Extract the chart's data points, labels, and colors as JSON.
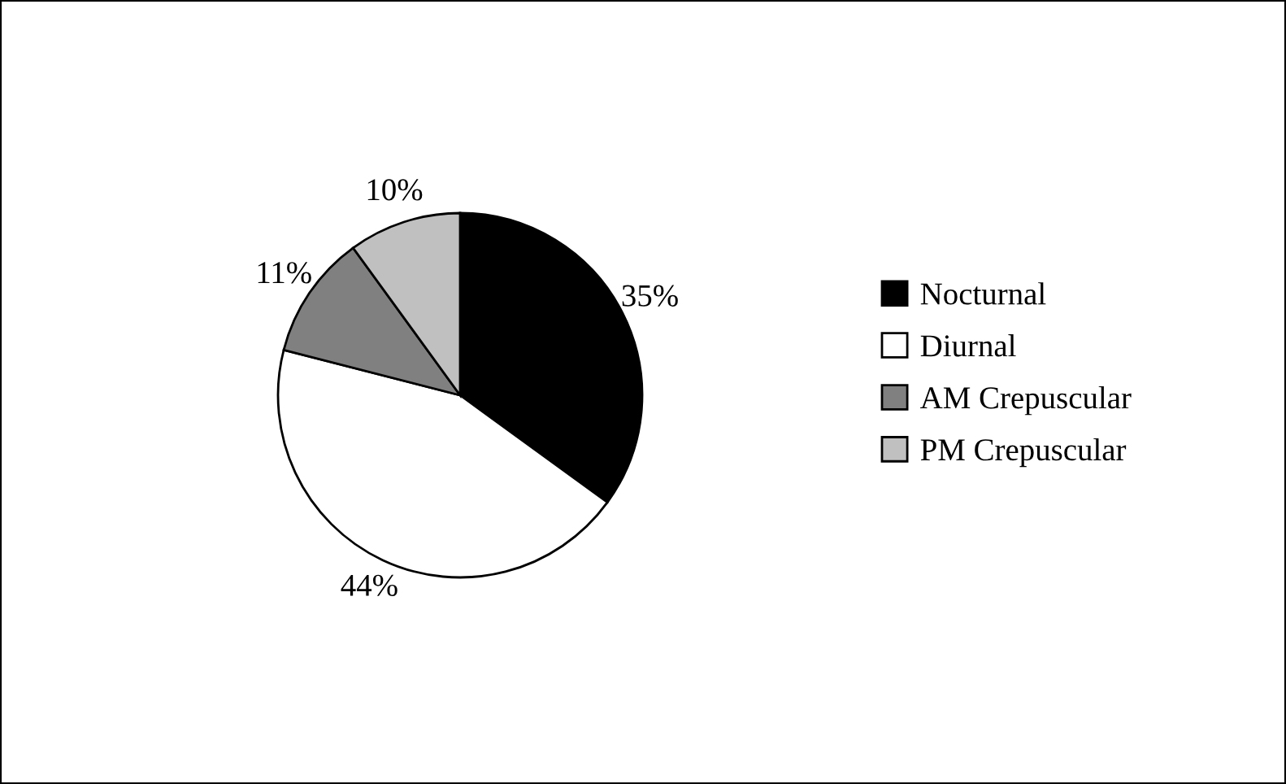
{
  "chart_data": {
    "type": "pie",
    "categories": [
      "Nocturnal",
      "Diurnal",
      "AM Crepuscular",
      "PM Crepuscular"
    ],
    "values": [
      35,
      44,
      11,
      10
    ],
    "colors": [
      "#000000",
      "#ffffff",
      "#808080",
      "#c0c0c0"
    ],
    "value_labels": [
      "35%",
      "44%",
      "11%",
      "10%"
    ],
    "legend": "right"
  }
}
